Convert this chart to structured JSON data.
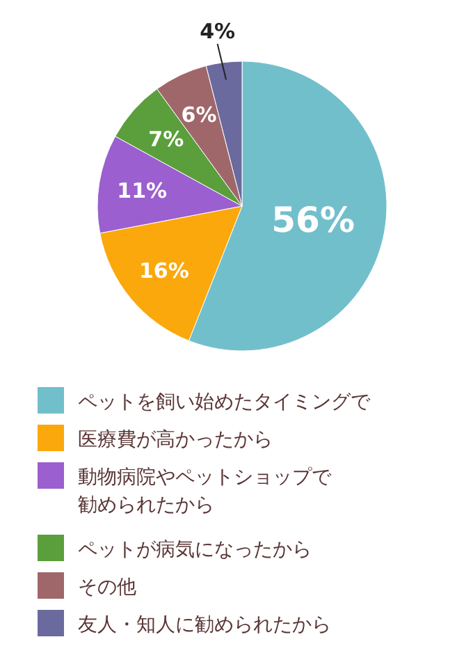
{
  "chart_data": {
    "type": "pie",
    "categories": [
      "ペットを飼い始めたタイミングで",
      "医療費が高かったから",
      "動物病院やペットショップで勧められたから",
      "ペットが病気になったから",
      "その他",
      "友人・知人に勧められたから"
    ],
    "values": [
      56,
      16,
      11,
      7,
      6,
      4
    ],
    "colors": [
      "#72bfcc",
      "#fba80c",
      "#9b5fcf",
      "#5a9f3c",
      "#a0676a",
      "#6a6a9e"
    ],
    "value_labels": [
      "56%",
      "16%",
      "11%",
      "7%",
      "6%",
      "4%"
    ],
    "legend": "bottom"
  }
}
